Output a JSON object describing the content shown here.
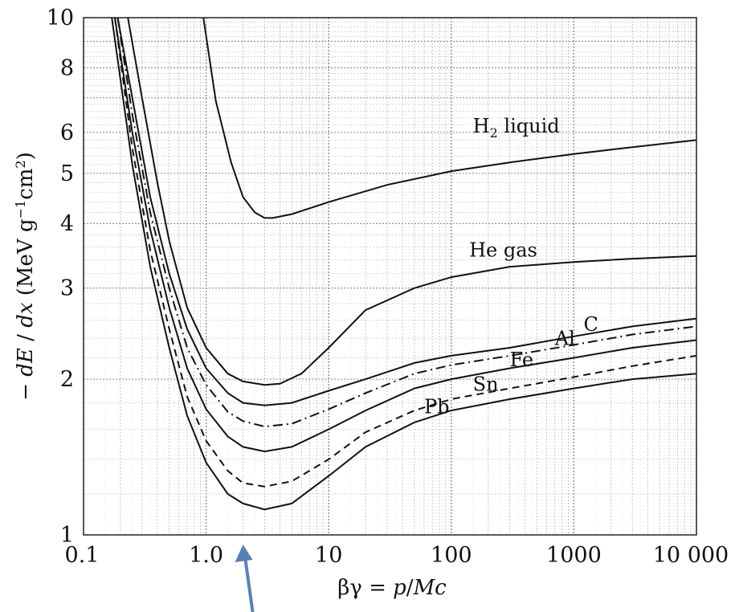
{
  "chart_data": {
    "type": "line",
    "x_scale": "log",
    "y_scale": "log",
    "xlim": [
      0.1,
      10000
    ],
    "ylim": [
      1,
      10
    ],
    "grid": true,
    "x_ticks": [
      "0.1",
      "1.0",
      "10",
      "100",
      "1000",
      "10 000"
    ],
    "y_ticks": [
      "1",
      "2",
      "3",
      "4",
      "5",
      "6",
      "8",
      "10"
    ],
    "xlabel": {
      "pre": "βγ = ",
      "p": "p",
      "mid": "/",
      "Mc": "Mc"
    },
    "ylabel": {
      "minus": "− ",
      "dE": "dE",
      "slash": " / ",
      "dx": "dx",
      "units": " (MeV g",
      "exp1": "−1",
      "cm": "cm",
      "exp2": "2",
      "close": ")"
    },
    "series": [
      {
        "name": "H2 liquid",
        "label_main": "H",
        "label_sub": "2",
        "label_rest": " liquid",
        "style": "solid",
        "points": [
          [
            0.95,
            10
          ],
          [
            1.2,
            6.9
          ],
          [
            1.6,
            5.25
          ],
          [
            2.0,
            4.5
          ],
          [
            2.5,
            4.2
          ],
          [
            3.0,
            4.1
          ],
          [
            3.5,
            4.1
          ],
          [
            5,
            4.17
          ],
          [
            10,
            4.4
          ],
          [
            30,
            4.75
          ],
          [
            100,
            5.05
          ],
          [
            300,
            5.25
          ],
          [
            1000,
            5.45
          ],
          [
            3000,
            5.62
          ],
          [
            10000,
            5.8
          ]
        ]
      },
      {
        "name": "He gas",
        "label_main": "He gas",
        "style": "solid",
        "points": [
          [
            0.23,
            10
          ],
          [
            0.3,
            7.0
          ],
          [
            0.4,
            4.8
          ],
          [
            0.5,
            3.7
          ],
          [
            0.7,
            2.75
          ],
          [
            1.0,
            2.3
          ],
          [
            1.5,
            2.05
          ],
          [
            2.0,
            1.98
          ],
          [
            3.0,
            1.95
          ],
          [
            4,
            1.96
          ],
          [
            6,
            2.05
          ],
          [
            10,
            2.3
          ],
          [
            20,
            2.72
          ],
          [
            50,
            3.0
          ],
          [
            100,
            3.15
          ],
          [
            300,
            3.3
          ],
          [
            1000,
            3.37
          ],
          [
            3000,
            3.42
          ],
          [
            10000,
            3.46
          ]
        ]
      },
      {
        "name": "C",
        "label_main": "C",
        "style": "solid",
        "points": [
          [
            0.19,
            10
          ],
          [
            0.25,
            7.0
          ],
          [
            0.35,
            4.5
          ],
          [
            0.5,
            3.2
          ],
          [
            0.7,
            2.5
          ],
          [
            1.0,
            2.1
          ],
          [
            1.5,
            1.88
          ],
          [
            2.0,
            1.8
          ],
          [
            3.0,
            1.78
          ],
          [
            5,
            1.8
          ],
          [
            10,
            1.9
          ],
          [
            20,
            2.0
          ],
          [
            50,
            2.15
          ],
          [
            100,
            2.22
          ],
          [
            300,
            2.3
          ],
          [
            1000,
            2.42
          ],
          [
            3000,
            2.53
          ],
          [
            10000,
            2.62
          ]
        ]
      },
      {
        "name": "Al",
        "label_main": "Al",
        "style": "dash-dot",
        "points": [
          [
            0.19,
            10
          ],
          [
            0.25,
            6.5
          ],
          [
            0.35,
            4.2
          ],
          [
            0.5,
            3.0
          ],
          [
            0.7,
            2.3
          ],
          [
            1.0,
            1.95
          ],
          [
            1.5,
            1.73
          ],
          [
            2.0,
            1.66
          ],
          [
            3.0,
            1.62
          ],
          [
            5,
            1.64
          ],
          [
            10,
            1.75
          ],
          [
            20,
            1.88
          ],
          [
            50,
            2.05
          ],
          [
            100,
            2.13
          ],
          [
            300,
            2.22
          ],
          [
            1000,
            2.33
          ],
          [
            3000,
            2.44
          ],
          [
            10000,
            2.53
          ]
        ]
      },
      {
        "name": "Fe",
        "label_main": "Fe",
        "style": "solid",
        "points": [
          [
            0.18,
            10
          ],
          [
            0.25,
            6.0
          ],
          [
            0.35,
            3.9
          ],
          [
            0.5,
            2.75
          ],
          [
            0.7,
            2.1
          ],
          [
            1.0,
            1.75
          ],
          [
            1.5,
            1.55
          ],
          [
            2.0,
            1.48
          ],
          [
            3.0,
            1.45
          ],
          [
            5,
            1.48
          ],
          [
            10,
            1.6
          ],
          [
            20,
            1.74
          ],
          [
            50,
            1.92
          ],
          [
            100,
            2.0
          ],
          [
            300,
            2.1
          ],
          [
            1000,
            2.2
          ],
          [
            3000,
            2.3
          ],
          [
            10000,
            2.38
          ]
        ]
      },
      {
        "name": "Sn",
        "label_main": "Sn",
        "style": "dashed",
        "points": [
          [
            0.18,
            10
          ],
          [
            0.25,
            5.6
          ],
          [
            0.35,
            3.55
          ],
          [
            0.5,
            2.5
          ],
          [
            0.7,
            1.85
          ],
          [
            1.0,
            1.52
          ],
          [
            1.5,
            1.33
          ],
          [
            2.0,
            1.26
          ],
          [
            3.0,
            1.24
          ],
          [
            5,
            1.27
          ],
          [
            10,
            1.4
          ],
          [
            20,
            1.58
          ],
          [
            50,
            1.74
          ],
          [
            100,
            1.83
          ],
          [
            300,
            1.92
          ],
          [
            1000,
            2.02
          ],
          [
            3000,
            2.12
          ],
          [
            10000,
            2.22
          ]
        ]
      },
      {
        "name": "Pb",
        "label_main": "Pb",
        "style": "solid",
        "points": [
          [
            0.17,
            10
          ],
          [
            0.25,
            5.2
          ],
          [
            0.35,
            3.3
          ],
          [
            0.5,
            2.3
          ],
          [
            0.7,
            1.7
          ],
          [
            1.0,
            1.38
          ],
          [
            1.5,
            1.2
          ],
          [
            2.0,
            1.15
          ],
          [
            3.0,
            1.12
          ],
          [
            5,
            1.15
          ],
          [
            10,
            1.3
          ],
          [
            20,
            1.48
          ],
          [
            50,
            1.65
          ],
          [
            100,
            1.74
          ],
          [
            300,
            1.83
          ],
          [
            1000,
            1.92
          ],
          [
            3000,
            2.0
          ],
          [
            10000,
            2.05
          ]
        ]
      }
    ],
    "arrow": {
      "x": 2.0,
      "color": "#5b7fb5"
    }
  }
}
